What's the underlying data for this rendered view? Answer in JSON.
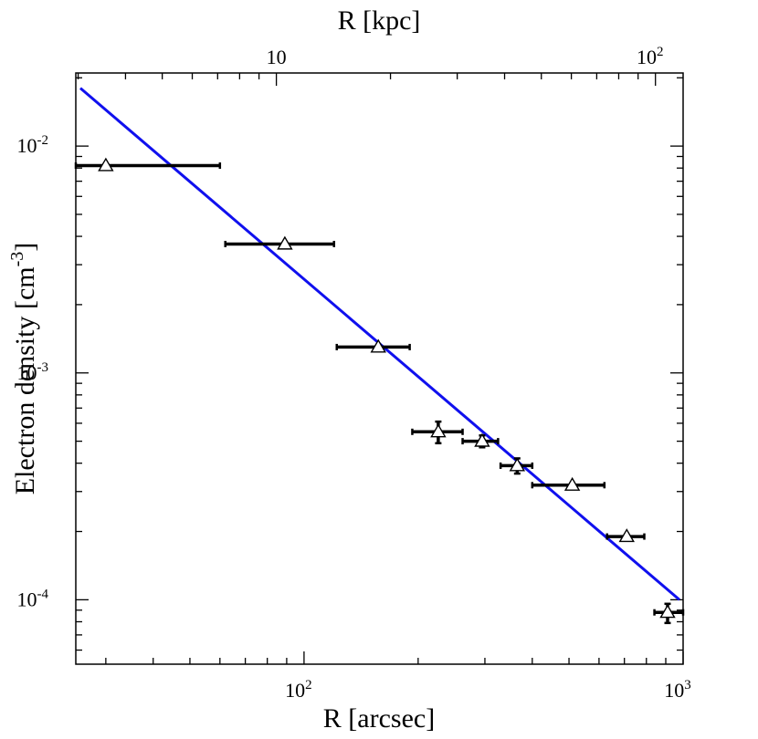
{
  "chart_data": {
    "type": "scatter",
    "scale": "log-log",
    "xlabel": "R [arcsec]",
    "x2label": "R [kpc]",
    "ylabel_main": "Electron density [cm",
    "ylabel_sup": "-3",
    "ylabel_close": "]",
    "xlim": [
      25,
      1000
    ],
    "ylim": [
      5.2e-05,
      0.021
    ],
    "x2_factor": 0.1183,
    "x_ticks": [
      {
        "value": 100,
        "base": "10",
        "exp": "2"
      },
      {
        "value": 1000,
        "base": "10",
        "exp": "3"
      }
    ],
    "x2_ticks": [
      {
        "value": 10,
        "label": "10"
      },
      {
        "value": 100,
        "base": "10",
        "exp": "2"
      }
    ],
    "y_ticks": [
      {
        "value": 0.01,
        "base": "10",
        "exp": "-2"
      },
      {
        "value": 0.001,
        "base": "10",
        "exp": "-3"
      },
      {
        "value": 0.0001,
        "base": "10",
        "exp": "-4"
      }
    ],
    "points": [
      {
        "x": 30,
        "y": 0.0082,
        "xlo": 25,
        "xhi": 60,
        "ylo": 0.0082,
        "yhi": 0.0082
      },
      {
        "x": 89,
        "y": 0.0037,
        "xlo": 62,
        "xhi": 120,
        "ylo": 0.0037,
        "yhi": 0.0037
      },
      {
        "x": 157,
        "y": 0.0013,
        "xlo": 122,
        "xhi": 190,
        "ylo": 0.0013,
        "yhi": 0.0013
      },
      {
        "x": 226,
        "y": 0.00055,
        "xlo": 193,
        "xhi": 262,
        "ylo": 0.00049,
        "yhi": 0.00061
      },
      {
        "x": 295,
        "y": 0.0005,
        "xlo": 262,
        "xhi": 325,
        "ylo": 0.00047,
        "yhi": 0.00053
      },
      {
        "x": 365,
        "y": 0.00039,
        "xlo": 330,
        "xhi": 400,
        "ylo": 0.00036,
        "yhi": 0.00042
      },
      {
        "x": 510,
        "y": 0.00032,
        "xlo": 400,
        "xhi": 620,
        "ylo": 0.00032,
        "yhi": 0.00032
      },
      {
        "x": 710,
        "y": 0.00019,
        "xlo": 630,
        "xhi": 790,
        "ylo": 0.00019,
        "yhi": 0.00019
      },
      {
        "x": 910,
        "y": 8.8e-05,
        "xlo": 840,
        "xhi": 1000,
        "ylo": 7.9e-05,
        "yhi": 9.6e-05
      }
    ],
    "fit_line": {
      "x": [
        25,
        1000
      ],
      "y": [
        0.018,
        0.0001
      ]
    },
    "colors": {
      "fit": "#1010ee",
      "points": "#000000",
      "marker_fill": "#ffffff"
    }
  }
}
